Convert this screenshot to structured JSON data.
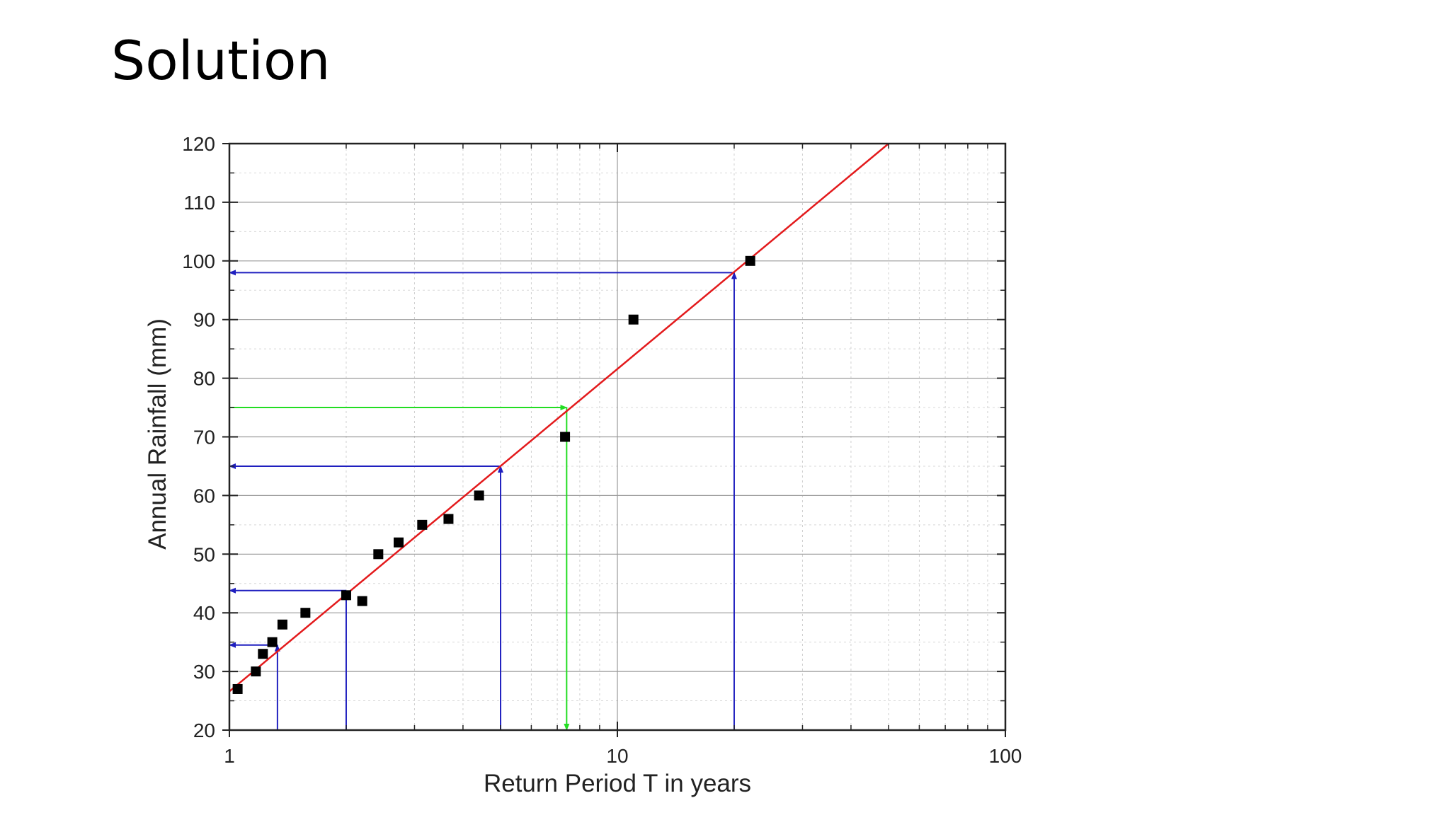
{
  "slide": {
    "title": "Solution"
  },
  "chart_data": {
    "type": "scatter",
    "xlabel": "Return Period T in years",
    "ylabel": "Annual Rainfall (mm)",
    "x_scale": "log",
    "xlim": [
      1,
      100
    ],
    "ylim": [
      20,
      120
    ],
    "x_ticks": [
      "1",
      "10",
      "100"
    ],
    "y_ticks": [
      "20",
      "30",
      "40",
      "50",
      "60",
      "70",
      "80",
      "90",
      "100",
      "110",
      "120"
    ],
    "grid": true,
    "series": [
      {
        "kind": "points",
        "color": "#000000",
        "points": [
          [
            1.05,
            27
          ],
          [
            1.17,
            30
          ],
          [
            1.22,
            33
          ],
          [
            1.29,
            35
          ],
          [
            1.37,
            38
          ],
          [
            1.57,
            40
          ],
          [
            2.0,
            43
          ],
          [
            2.2,
            42
          ],
          [
            2.42,
            50
          ],
          [
            2.73,
            52
          ],
          [
            3.14,
            55
          ],
          [
            3.67,
            56
          ],
          [
            4.4,
            60
          ],
          [
            7.33,
            70
          ],
          [
            11.0,
            90
          ],
          [
            22.0,
            100
          ]
        ]
      },
      {
        "kind": "fit-line",
        "color": "#e31a1c",
        "points": [
          [
            1,
            26.6
          ],
          [
            50,
            120
          ]
        ]
      }
    ],
    "annotations": [
      {
        "color": "#1f1fbf",
        "x": 1.33,
        "y": 34.5
      },
      {
        "color": "#1f1fbf",
        "x": 2,
        "y": 43.8
      },
      {
        "color": "#1f1fbf",
        "x": 5,
        "y": 65
      },
      {
        "color": "#1f1fbf",
        "x": 20,
        "y": 98
      },
      {
        "color": "#22dd22",
        "x": 7.4,
        "y": 75,
        "direction": "from-y"
      }
    ]
  }
}
